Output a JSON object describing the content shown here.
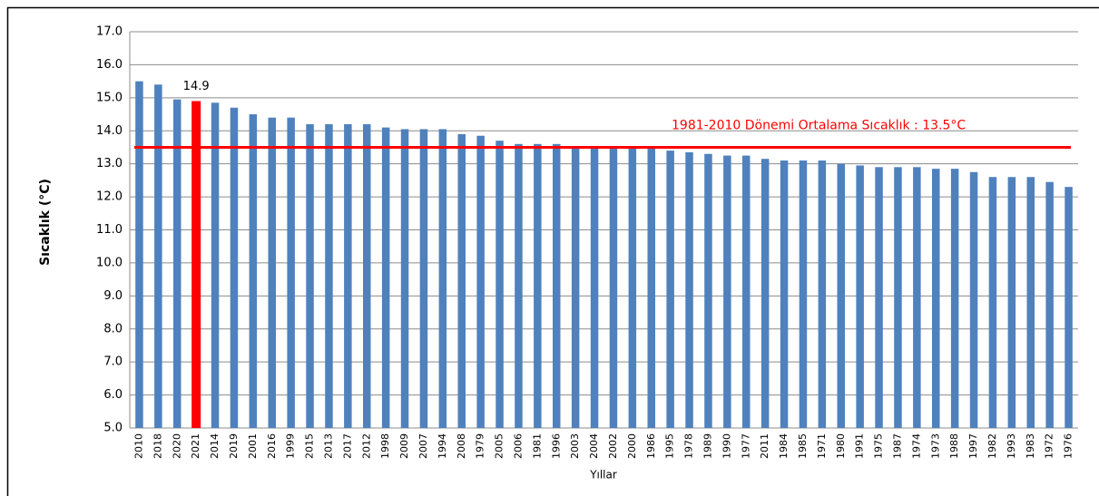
{
  "chart_data": {
    "type": "bar",
    "y_label": "Sıcaklık (°C)",
    "x_label": "Yıllar",
    "categories": [
      "2010",
      "2018",
      "2020",
      "2021",
      "2014",
      "2019",
      "2001",
      "2016",
      "1999",
      "2015",
      "2013",
      "2017",
      "2012",
      "1998",
      "2009",
      "2007",
      "1994",
      "2008",
      "1979",
      "2005",
      "2006",
      "1981",
      "1996",
      "2003",
      "2004",
      "2002",
      "2000",
      "1986",
      "1995",
      "1978",
      "1989",
      "1990",
      "1977",
      "2011",
      "1984",
      "1985",
      "1971",
      "1980",
      "1991",
      "1975",
      "1987",
      "1974",
      "1973",
      "1988",
      "1997",
      "1982",
      "1993",
      "1983",
      "1972",
      "1976"
    ],
    "values": [
      15.5,
      15.4,
      14.95,
      14.9,
      14.85,
      14.7,
      14.5,
      14.4,
      14.4,
      14.2,
      14.2,
      14.2,
      14.2,
      14.1,
      14.05,
      14.05,
      14.05,
      13.9,
      13.85,
      13.7,
      13.6,
      13.6,
      13.6,
      13.5,
      13.5,
      13.5,
      13.5,
      13.5,
      13.4,
      13.35,
      13.3,
      13.25,
      13.25,
      13.15,
      13.1,
      13.1,
      13.1,
      13.0,
      12.95,
      12.9,
      12.9,
      12.9,
      12.85,
      12.85,
      12.75,
      12.6,
      12.6,
      12.6,
      12.45,
      12.3
    ],
    "value_labels": [
      null,
      null,
      null,
      "14.9",
      null,
      null,
      null,
      null,
      null,
      null,
      null,
      null,
      null,
      null,
      null,
      null,
      null,
      null,
      null,
      null,
      null,
      null,
      null,
      null,
      null,
      null,
      null,
      null,
      null,
      null,
      null,
      null,
      null,
      null,
      null,
      null,
      null,
      null,
      null,
      null,
      null,
      null,
      null,
      null,
      null,
      null,
      null,
      null,
      null,
      null
    ],
    "color": "#4f81bd",
    "highlight": {
      "category": "2021",
      "color": "#ff0000"
    },
    "reference_line": {
      "value": 13.5,
      "label": "1981-2010 Dönemi Ortalama Sıcaklık : 13.5°C",
      "color": "#ff0000"
    },
    "ylim": [
      5,
      17
    ],
    "yticks": [
      {
        "value": 5,
        "label": "5.0"
      },
      {
        "value": 6,
        "label": "6.0"
      },
      {
        "value": 7,
        "label": "7.0"
      },
      {
        "value": 8,
        "label": "8.0"
      },
      {
        "value": 9,
        "label": "9.0"
      },
      {
        "value": 10,
        "label": "10.0"
      },
      {
        "value": 11,
        "label": "11.0"
      },
      {
        "value": 12,
        "label": "12.0"
      },
      {
        "value": 13,
        "label": "13.0"
      },
      {
        "value": 14,
        "label": "14.0"
      },
      {
        "value": 15,
        "label": "15.0"
      },
      {
        "value": 16,
        "label": "16.0"
      },
      {
        "value": 17,
        "label": "17.0"
      }
    ],
    "grid": true
  }
}
